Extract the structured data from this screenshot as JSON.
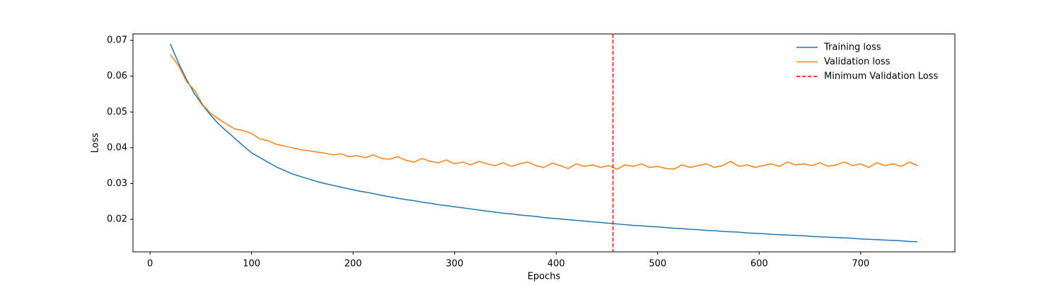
{
  "chart_data": {
    "type": "line",
    "xlabel": "Epochs",
    "ylabel": "Loss",
    "x": [
      20,
      28,
      36,
      44,
      52,
      60,
      68,
      76,
      84,
      92,
      100,
      108,
      116,
      124,
      132,
      140,
      148,
      156,
      164,
      172,
      180,
      188,
      196,
      204,
      212,
      220,
      228,
      236,
      244,
      252,
      260,
      268,
      276,
      284,
      292,
      300,
      308,
      316,
      324,
      332,
      340,
      348,
      356,
      364,
      372,
      380,
      388,
      396,
      404,
      412,
      420,
      428,
      436,
      444,
      452,
      460,
      468,
      476,
      484,
      492,
      500,
      508,
      516,
      524,
      532,
      540,
      548,
      556,
      564,
      572,
      580,
      588,
      596,
      604,
      612,
      620,
      628,
      636,
      644,
      652,
      660,
      668,
      676,
      684,
      692,
      700,
      708,
      716,
      724,
      732,
      740,
      748,
      756
    ],
    "series": [
      {
        "name": "Training loss",
        "color": "#1f77b4",
        "values": [
          0.069,
          0.0637,
          0.0591,
          0.055,
          0.0518,
          0.049,
          0.0465,
          0.0445,
          0.0425,
          0.0405,
          0.0386,
          0.0373,
          0.036,
          0.0347,
          0.0337,
          0.0327,
          0.032,
          0.0313,
          0.0306,
          0.03,
          0.0295,
          0.029,
          0.0285,
          0.028,
          0.0276,
          0.0272,
          0.0267,
          0.0263,
          0.0259,
          0.0255,
          0.0252,
          0.0248,
          0.0245,
          0.0241,
          0.0238,
          0.0235,
          0.0232,
          0.0229,
          0.0226,
          0.0223,
          0.022,
          0.0217,
          0.0215,
          0.0212,
          0.021,
          0.0208,
          0.0205,
          0.0203,
          0.0201,
          0.0199,
          0.0197,
          0.0195,
          0.0193,
          0.0191,
          0.0189,
          0.0187,
          0.0185,
          0.0183,
          0.0182,
          0.018,
          0.0179,
          0.0177,
          0.0175,
          0.0174,
          0.0172,
          0.0171,
          0.0169,
          0.0168,
          0.0166,
          0.0165,
          0.0164,
          0.0162,
          0.0161,
          0.016,
          0.0158,
          0.0157,
          0.0156,
          0.0155,
          0.0154,
          0.0152,
          0.0151,
          0.015,
          0.0149,
          0.0148,
          0.0147,
          0.0145,
          0.0144,
          0.0143,
          0.0142,
          0.0141,
          0.014,
          0.0138,
          0.0137
        ]
      },
      {
        "name": "Validation loss",
        "color": "#ff7f0e",
        "values": [
          0.066,
          0.063,
          0.0585,
          0.056,
          0.052,
          0.0495,
          0.048,
          0.0465,
          0.0452,
          0.0448,
          0.044,
          0.0425,
          0.042,
          0.041,
          0.0405,
          0.04,
          0.0395,
          0.0392,
          0.0388,
          0.0385,
          0.038,
          0.0383,
          0.0375,
          0.0378,
          0.0372,
          0.038,
          0.037,
          0.0368,
          0.0375,
          0.0365,
          0.036,
          0.037,
          0.0362,
          0.0358,
          0.0366,
          0.0355,
          0.036,
          0.0352,
          0.0362,
          0.0355,
          0.035,
          0.0358,
          0.0348,
          0.0355,
          0.036,
          0.035,
          0.0345,
          0.0357,
          0.035,
          0.0342,
          0.0355,
          0.0348,
          0.0352,
          0.0345,
          0.035,
          0.034,
          0.0352,
          0.0348,
          0.0355,
          0.0345,
          0.0348,
          0.0342,
          0.034,
          0.0352,
          0.0345,
          0.035,
          0.0355,
          0.0345,
          0.035,
          0.0362,
          0.0348,
          0.0352,
          0.0345,
          0.035,
          0.0355,
          0.0348,
          0.036,
          0.0352,
          0.0355,
          0.035,
          0.0358,
          0.0348,
          0.0352,
          0.036,
          0.035,
          0.0355,
          0.0345,
          0.0358,
          0.035,
          0.0355,
          0.0348,
          0.036,
          0.035
        ]
      }
    ],
    "vlines": [
      {
        "name": "Minimum Validation Loss",
        "color": "#ff0000",
        "style": "dashed",
        "x": 456
      }
    ],
    "xlim": [
      -16.8,
      792.8
    ],
    "xticks": [
      0,
      100,
      200,
      300,
      400,
      500,
      600,
      700
    ],
    "ylim": [
      0.0109,
      0.0718
    ],
    "yticks": [
      0.02,
      0.03,
      0.04,
      0.05,
      0.06,
      0.07
    ],
    "grid": false,
    "legend": "upper right"
  }
}
